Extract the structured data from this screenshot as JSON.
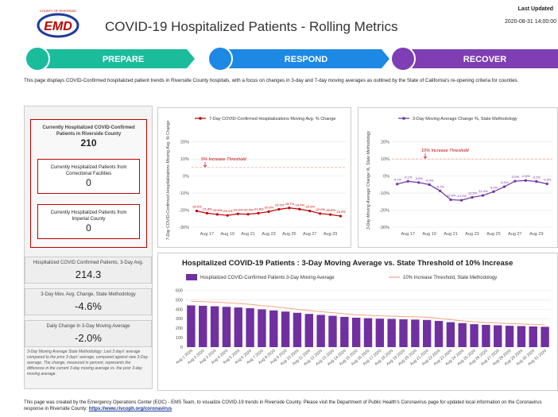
{
  "header": {
    "logo_text": "EMD",
    "logo_sub": "COUNTY OF RIVERSIDE",
    "title": "COVID-19 Hospitalized Patients - Rolling Metrics",
    "updated_label": "Last Updated",
    "updated_value": "2020-08-31 14:00:00"
  },
  "nav": [
    "PREPARE",
    "RESPOND",
    "RECOVER"
  ],
  "intro": "This page displays COVID-Confirmed hospitalized patient trends in Riverside County hospitals, with a focus on changes in 3-day and 7-day moving averages as outlined by the State of California's re-opening criteria for counties.",
  "kpis": {
    "main": {
      "label": "Currently Hospitalized COVID-Confirmed Patients in Riverside County",
      "value": "210"
    },
    "sub": [
      {
        "label": "Currently Hospitalized Patients from Correctional Facilities",
        "value": "0"
      },
      {
        "label": "Currently Hospitalized Patients from Imperial County",
        "value": "0"
      }
    ],
    "stats": [
      {
        "label": "Hospitalized COVID Confirmed Patients, 3-Day Avg.",
        "value": "214.3"
      },
      {
        "label": "3-Day Mov. Avg. Change, State Methodology",
        "value": "-4.6%"
      },
      {
        "label": "Daily Change In 3-Day Moving Average",
        "value": "-2.0%"
      }
    ],
    "note": "3-Day Moving Average State Methodology: Last 3 days' average compared to the prior 3 days' average, compared against new 3-Day average. The change, measured in percent, represents the difference in the current 3-day moving average vs. the prior 3-day moving average."
  },
  "chart_data": [
    {
      "type": "line",
      "y_label": "7-Day COVID-Confirmed Hospitalizations Moving Avg. % Change",
      "legend": "top",
      "categories": [
        null,
        "Aug 17",
        null,
        "Aug 19",
        null,
        "Aug 21",
        null,
        "Aug 23",
        null,
        "Aug 25",
        null,
        "Aug 27",
        null,
        "Aug 29",
        null
      ],
      "series": [
        {
          "name": "7-Day COVID-Confirmed Hospitalizations Moving Avg. % Change",
          "color": "#c00000",
          "values": [
            -20.5,
            -21.8,
            -22.5,
            -23.1,
            -22.2,
            -22.4,
            -21.8,
            -20.9,
            -19.5,
            -18.7,
            -19.4,
            -20.5,
            -22.0,
            -22.6,
            -23.5
          ],
          "value_labels": [
            "-20.5%",
            "-21.8%",
            "-22.5%",
            "-23.1%",
            "-22.2%",
            "-22.4%",
            "-21.8%",
            "-20.9%",
            "-19.5%",
            "-18.7%",
            "-19.4%",
            "-20.5%",
            "-22.0%",
            "-22.6%",
            "-23.5%"
          ]
        }
      ],
      "threshold": {
        "label": "5% Increase Threshold",
        "value": 5,
        "color": "#f4a582"
      },
      "ylim": [
        -30,
        25
      ],
      "yticks": [
        {
          "value": -30,
          "label": "-30%"
        },
        {
          "value": -20,
          "label": "-20%"
        },
        {
          "value": -10,
          "label": "-10%"
        },
        {
          "value": 0,
          "label": "0%"
        },
        {
          "value": 10,
          "label": "10%"
        },
        {
          "value": 20,
          "label": "20%"
        }
      ],
      "grid": true
    },
    {
      "type": "line",
      "y_label": "3-Day Moving Average Change %, State Methodology",
      "legend": "top",
      "categories": [
        null,
        "Aug 17",
        null,
        "Aug 19",
        null,
        "Aug 21",
        null,
        "Aug 23",
        null,
        "Aug 25",
        null,
        "Aug 27",
        null,
        "Aug 29",
        null
      ],
      "series": [
        {
          "name": "3-Day Moving Average Change %, State Methodology",
          "color": "#7030a0",
          "values": [
            -4.7,
            -3.1,
            -3.8,
            -5.0,
            -8.7,
            -13.9,
            -14.2,
            -12.5,
            -11.4,
            -9.2,
            -6.3,
            -3.0,
            -2.6,
            -3.2,
            -4.6
          ],
          "value_labels": [
            "-4.7%",
            "-3.1%",
            "-3.8%",
            "-5.0%",
            "-8.7%",
            "-13.9%",
            "-14.2%",
            "-12.5%",
            "-11.4%",
            "-9.2%",
            "-6.3%",
            "-3.0%",
            "-2.6%",
            "-3.2%",
            "-4.6%"
          ]
        }
      ],
      "threshold": {
        "label": "10% Increase Threshold",
        "value": 10,
        "color": "#f4a582"
      },
      "ylim": [
        -30,
        25
      ],
      "yticks": [
        {
          "value": -30,
          "label": "-30%"
        },
        {
          "value": -20,
          "label": "-20%"
        },
        {
          "value": -10,
          "label": "-10%"
        },
        {
          "value": 0,
          "label": "0%"
        },
        {
          "value": 10,
          "label": "10%"
        },
        {
          "value": 20,
          "label": "20%"
        }
      ],
      "grid": true
    },
    {
      "type": "bar",
      "title": "Hospitalized COVID-19 Patients : 3-Day Moving Average vs. State Threshold of 10% Increase",
      "legend": "top",
      "categories": [
        "Aug 1 2020",
        "Aug 2 2020",
        "Aug 3 2020",
        "Aug 4 2020",
        "Aug 5 2020",
        "Aug 6 2020",
        "Aug 7 2020",
        "Aug 8 2020",
        "Aug 9 2020",
        "Aug 10 2020",
        "Aug 11 2020",
        "Aug 12 2020",
        "Aug 13 2020",
        "Aug 14 2020",
        "Aug 15 2020",
        "Aug 16 2020",
        "Aug 17 2020",
        "Aug 18 2020",
        "Aug 19 2020",
        "Aug 20 2020",
        "Aug 21 2020",
        "Aug 22 2020",
        "Aug 23 2020",
        "Aug 24 2020",
        "Aug 25 2020",
        "Aug 26 2020",
        "Aug 27 2020",
        "Aug 28 2020",
        "Aug 29 2020",
        "Aug 30 2020",
        "Aug 31 2020"
      ],
      "series": [
        {
          "name": "Hospitalized COVID-Confirmed Patients 3-Day Moving Average",
          "color": "#7030a0",
          "type": "bar",
          "values": [
            440,
            436,
            431,
            425,
            418,
            410,
            398,
            387,
            375,
            362,
            350,
            340,
            330,
            319,
            310,
            305,
            300,
            297,
            293,
            290,
            286,
            276,
            263,
            253,
            242,
            235,
            230,
            225,
            222,
            218,
            214.3
          ]
        },
        {
          "name": "10% Increase Threshold, State Methodology",
          "color": "#f4a582",
          "type": "line",
          "values": [
            484,
            480,
            474,
            468,
            460,
            451,
            438,
            426,
            413,
            398,
            385,
            374,
            363,
            351,
            341,
            336,
            330,
            327,
            322,
            319,
            315,
            304,
            289,
            278,
            266,
            259,
            253,
            248,
            244,
            240,
            235
          ]
        }
      ],
      "ylim": [
        0,
        620
      ],
      "yticks": [
        0,
        100,
        200,
        300,
        400,
        500,
        600
      ],
      "grid": true
    }
  ],
  "footer": {
    "text": "This page was created by the Emergency Operations Center (EOC) - EMS Team, to visualize COVID-19 trends in Riverside County. Please visit the Department of Public Health's Coronavirus page for updated local information on the Coronavirus response in Riverside County: ",
    "link": "https://www.rivcoph.org/coronavirus"
  }
}
